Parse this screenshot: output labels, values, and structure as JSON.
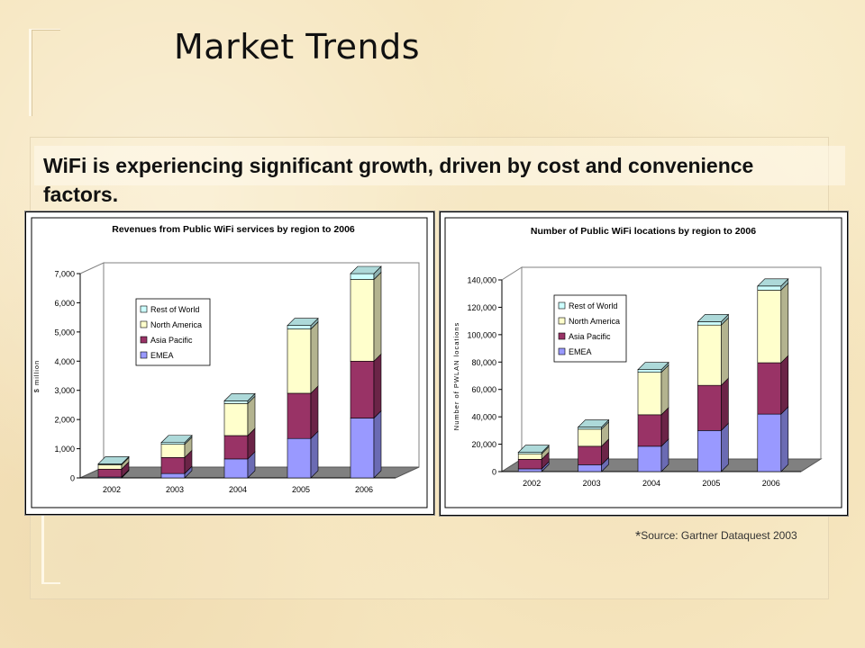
{
  "slide": {
    "title": "Market Trends",
    "headline": "WiFi is experiencing significant growth, driven by cost and convenience factors.",
    "source_star": "*",
    "source_text": "Source: Gartner Dataquest 2003"
  },
  "chart_data": [
    {
      "type": "bar",
      "stacked": true,
      "three_d": true,
      "title": "Revenues from Public WiFi services by region to 2006",
      "ylabel": "$ million",
      "xlabel": "",
      "categories": [
        "2002",
        "2003",
        "2004",
        "2005",
        "2006"
      ],
      "ylim": [
        0,
        7000
      ],
      "yticks": [
        0,
        1000,
        2000,
        3000,
        4000,
        5000,
        6000,
        7000
      ],
      "ytick_labels": [
        "0",
        "1,000",
        "2,000",
        "3,000",
        "4,000",
        "5,000",
        "6,000",
        "7,000"
      ],
      "legend_position": "left-center",
      "series": [
        {
          "name": "EMEA",
          "color": "#9999ff",
          "values": [
            30,
            150,
            650,
            1350,
            2050
          ]
        },
        {
          "name": "Asia Pacific",
          "color": "#993366",
          "values": [
            270,
            550,
            800,
            1550,
            1950
          ]
        },
        {
          "name": "North America",
          "color": "#ffffcc",
          "values": [
            150,
            450,
            1100,
            2200,
            2800
          ]
        },
        {
          "name": "Rest of World",
          "color": "#ccffff",
          "values": [
            30,
            60,
            90,
            120,
            200
          ]
        }
      ]
    },
    {
      "type": "bar",
      "stacked": true,
      "three_d": true,
      "title": "Number of Public WiFi locations by region to 2006",
      "ylabel": "Number of PWLAN locations",
      "xlabel": "",
      "categories": [
        "2002",
        "2003",
        "2004",
        "2005",
        "2006"
      ],
      "ylim": [
        0,
        140000
      ],
      "yticks": [
        0,
        20000,
        40000,
        60000,
        80000,
        100000,
        120000,
        140000
      ],
      "ytick_labels": [
        "0",
        "20,000",
        "40,000",
        "60,000",
        "80,000",
        "100,000",
        "120,000",
        "140,000"
      ],
      "legend_position": "left-center",
      "series": [
        {
          "name": "EMEA",
          "color": "#9999ff",
          "values": [
            2000,
            5000,
            18500,
            30000,
            42000
          ]
        },
        {
          "name": "Asia Pacific",
          "color": "#993366",
          "values": [
            7000,
            13500,
            23000,
            33000,
            37500
          ]
        },
        {
          "name": "North America",
          "color": "#ffffcc",
          "values": [
            4000,
            12500,
            31000,
            44000,
            53000
          ]
        },
        {
          "name": "Rest of World",
          "color": "#ccffff",
          "values": [
            1000,
            1500,
            2000,
            2500,
            3000
          ]
        }
      ]
    }
  ]
}
